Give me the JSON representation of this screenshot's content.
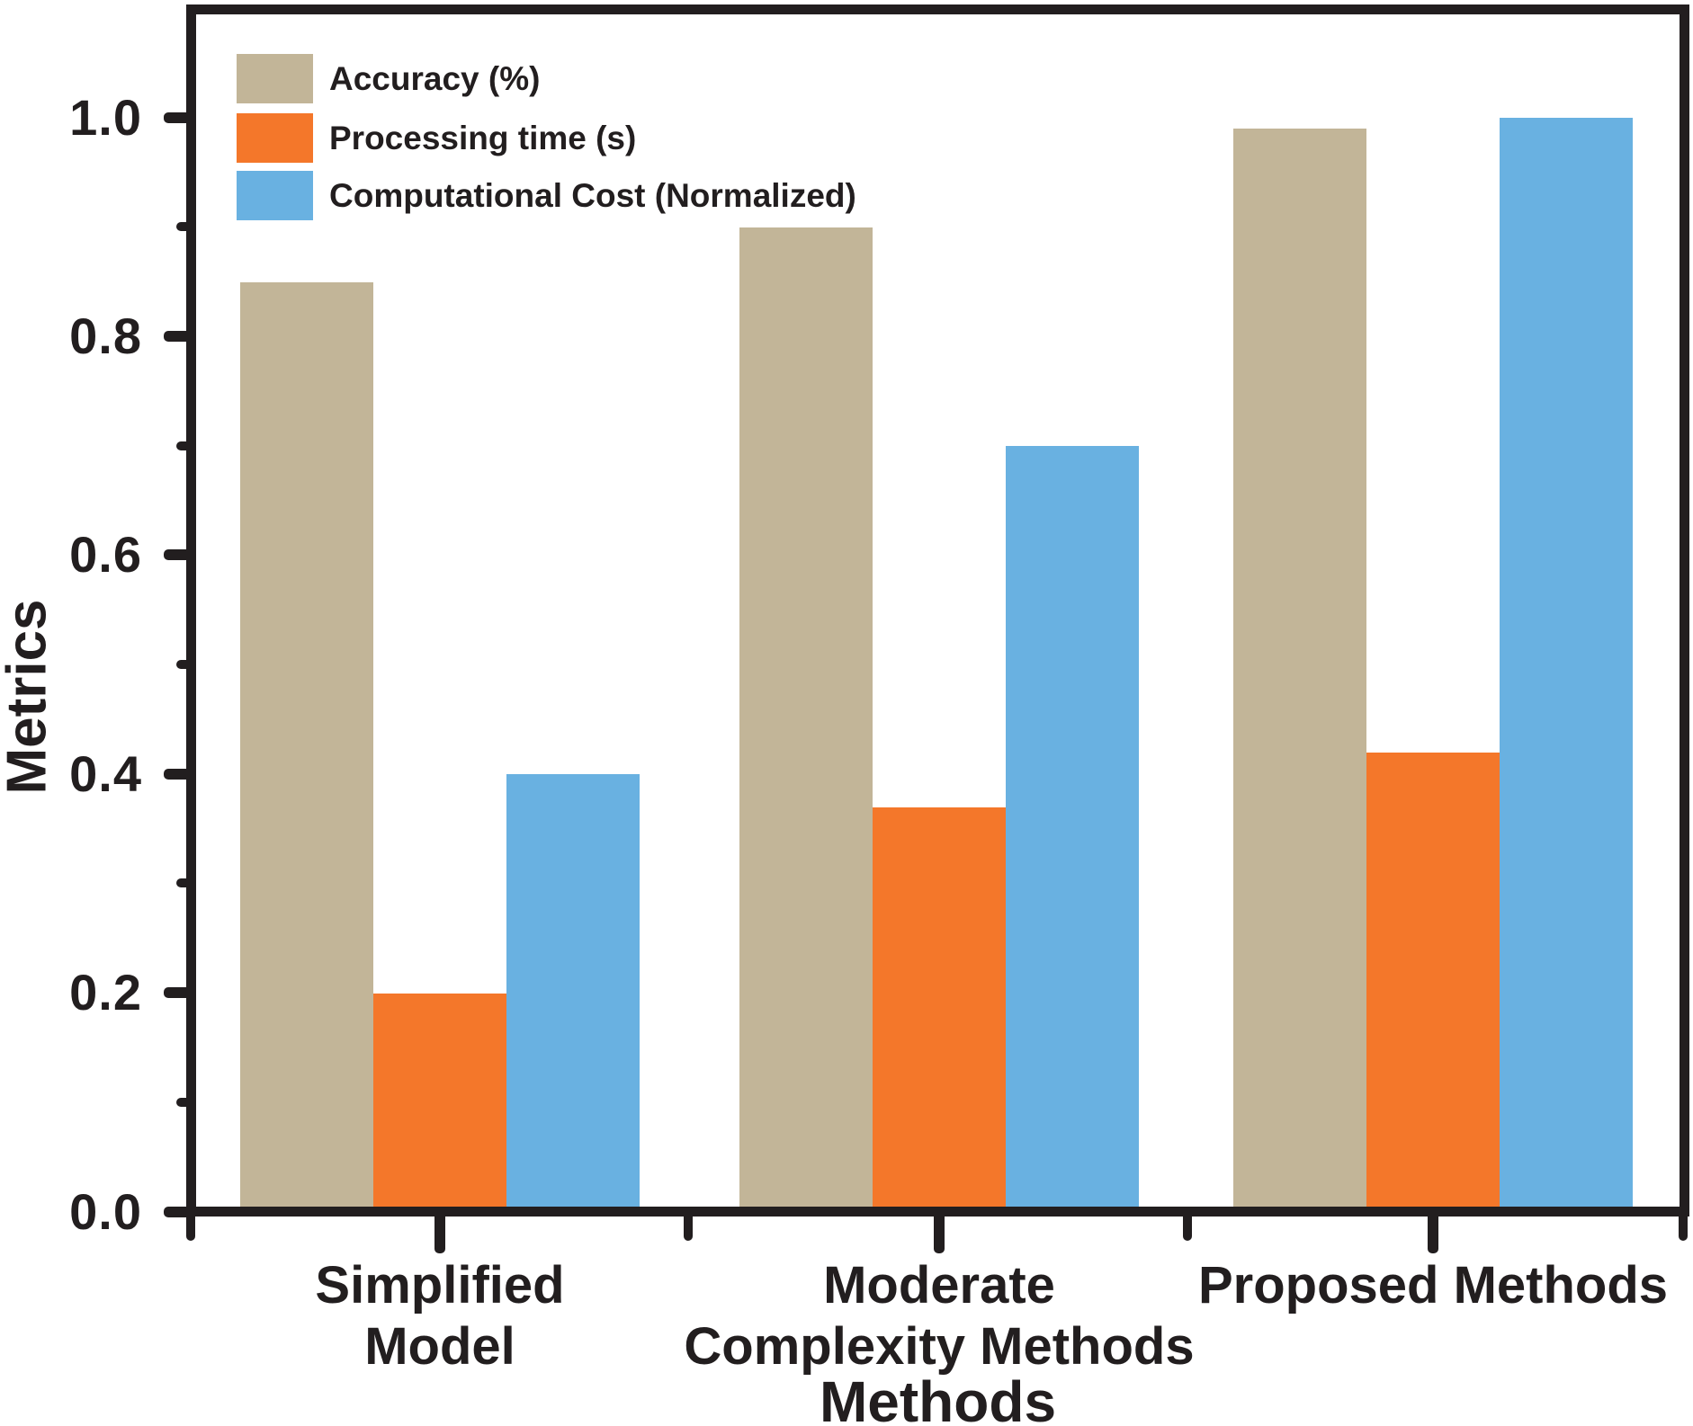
{
  "figure": {
    "y_axis_title": "Metrics",
    "x_axis_title": "Methods"
  },
  "legend": {
    "items": [
      {
        "label": "Accuracy (%)",
        "color": "#c2b598"
      },
      {
        "label": "Processing time (s)",
        "color": "#f4772a"
      },
      {
        "label": "Computational Cost (Normalized)",
        "color": "#69b1e1"
      }
    ]
  },
  "chart_data": {
    "type": "bar",
    "title": "",
    "xlabel": "Methods",
    "ylabel": "Metrics",
    "categories": [
      "Simplified Model",
      "Moderate Complexity Methods",
      "Proposed Methods"
    ],
    "category_label_lines": [
      [
        "Simplified",
        "Model"
      ],
      [
        "Moderate",
        "Complexity Methods"
      ],
      [
        "Proposed Methods"
      ]
    ],
    "series": [
      {
        "name": "Accuracy (%)",
        "color": "#c2b598",
        "values": [
          0.85,
          0.9,
          0.99
        ]
      },
      {
        "name": "Processing time (s)",
        "color": "#f4772a",
        "values": [
          0.2,
          0.37,
          0.42
        ]
      },
      {
        "name": "Computational Cost (Normalized)",
        "color": "#69b1e1",
        "values": [
          0.4,
          0.7,
          1.0
        ]
      }
    ],
    "ylim": [
      0,
      1.095
    ],
    "y_major_ticks": [
      0.0,
      0.2,
      0.4,
      0.6,
      0.8,
      1.0
    ],
    "y_major_tick_labels": [
      "0.0",
      "0.2",
      "0.4",
      "0.6",
      "0.8",
      "1.0"
    ],
    "y_minor_ticks": [
      0.1,
      0.3,
      0.5,
      0.7,
      0.9
    ],
    "grid": false,
    "legend_position": "top-left",
    "axis_color": "#221e1f"
  }
}
